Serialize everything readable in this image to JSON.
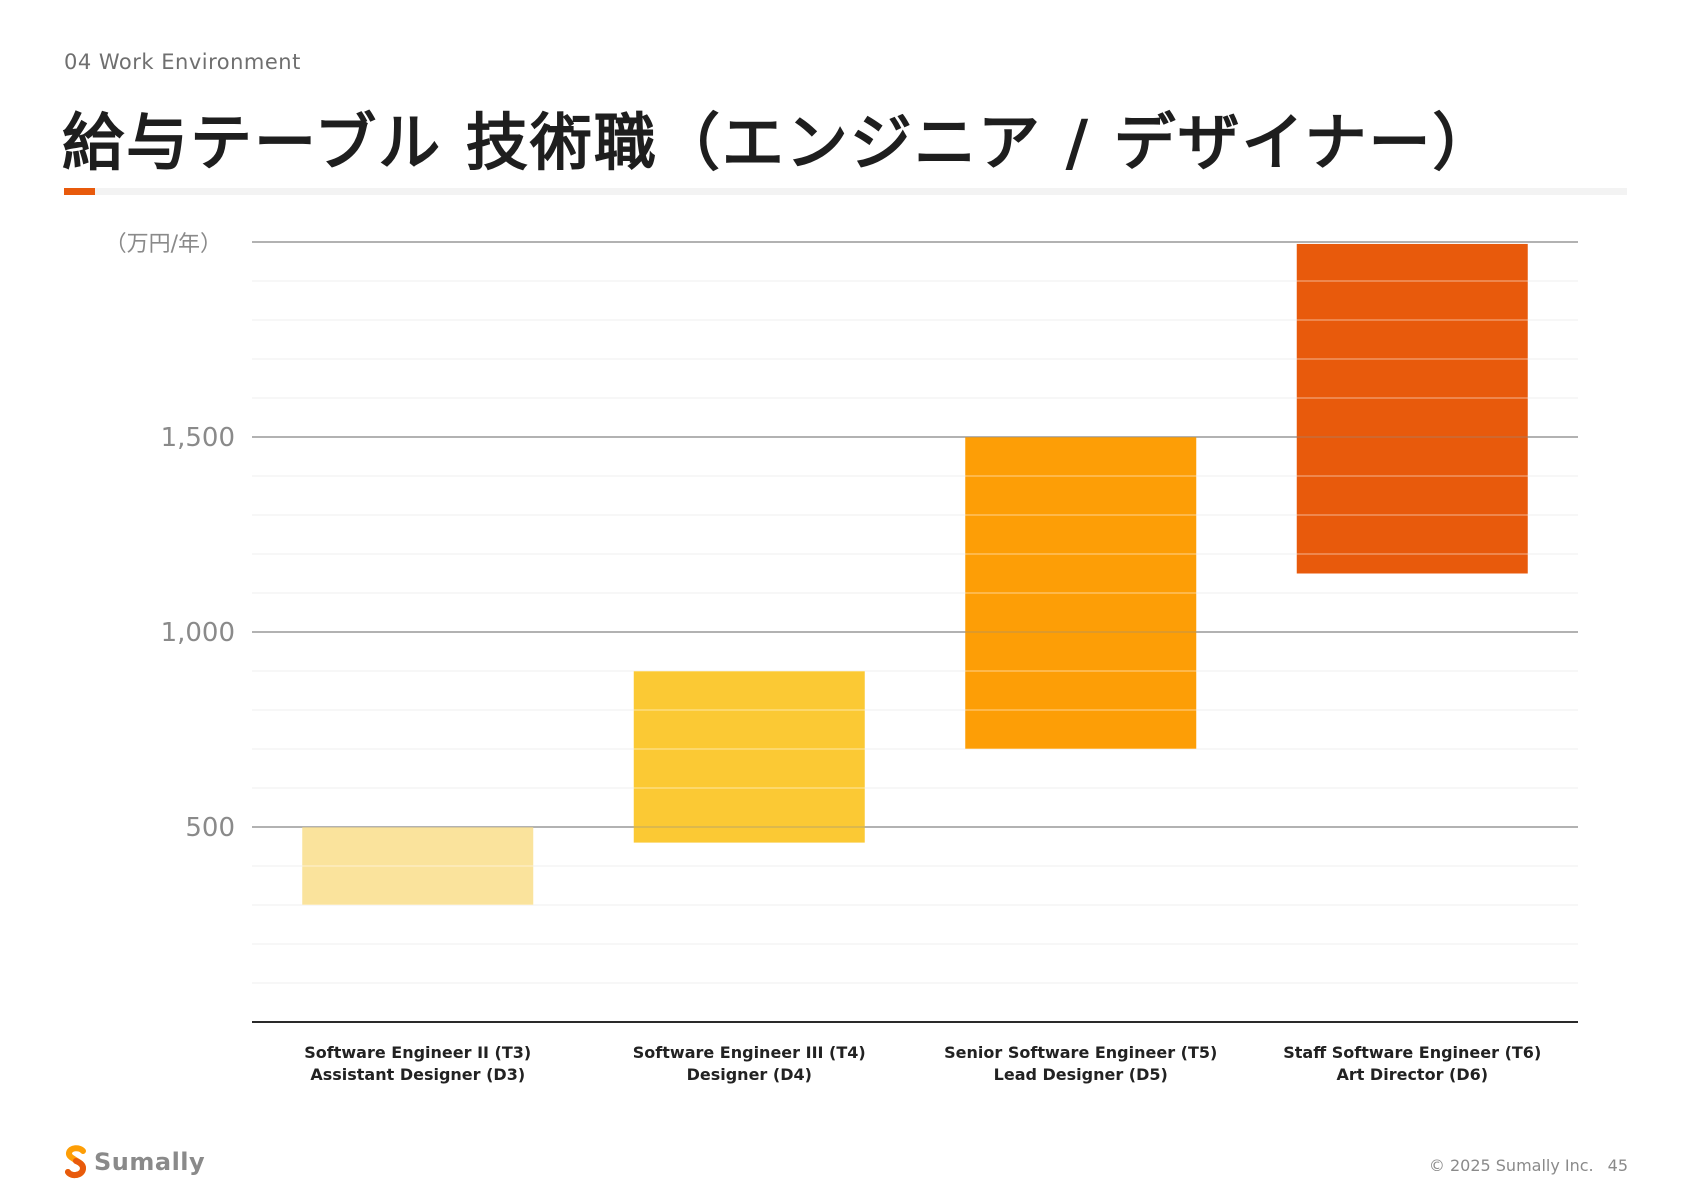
{
  "header": {
    "section": "04 Work Environment",
    "title": "給与テーブル 技術職（エンジニア / デザイナー）"
  },
  "footer": {
    "brand": "Sumally",
    "copyright": "© 2025 Sumally Inc.",
    "page_number": "45"
  },
  "colors": {
    "accent": "#e85a0c",
    "bar_t3": "#fae39c",
    "bar_t4": "#fbc934",
    "bar_t5": "#fd9e06",
    "bar_t6": "#e85a0c"
  },
  "chart_data": {
    "type": "bar",
    "subtype": "floating-range",
    "unit_label": "（万円/年）",
    "ylim": [
      0,
      2000
    ],
    "yticks": [
      {
        "value": 500,
        "label": "500"
      },
      {
        "value": 1000,
        "label": "1,000"
      },
      {
        "value": 1500,
        "label": "1,500"
      }
    ],
    "minor_grid_step": 100,
    "grid": true,
    "categories": [
      {
        "line1": "Software Engineer  II (T3)",
        "line2": "Assistant Designer (D3)",
        "low": 300,
        "high": 500,
        "color": "#fae39c"
      },
      {
        "line1": "Software Engineer III (T4)",
        "line2": "Designer (D4)",
        "low": 460,
        "high": 900,
        "color": "#fbc934"
      },
      {
        "line1": "Senior Software Engineer (T5)",
        "line2": "Lead Designer (D5)",
        "low": 700,
        "high": 1500,
        "color": "#fd9e06"
      },
      {
        "line1": "Staff Software Engineer (T6)",
        "line2": "Art Director (D6)",
        "low": 1150,
        "high": 1995,
        "color": "#e85a0c"
      }
    ]
  }
}
